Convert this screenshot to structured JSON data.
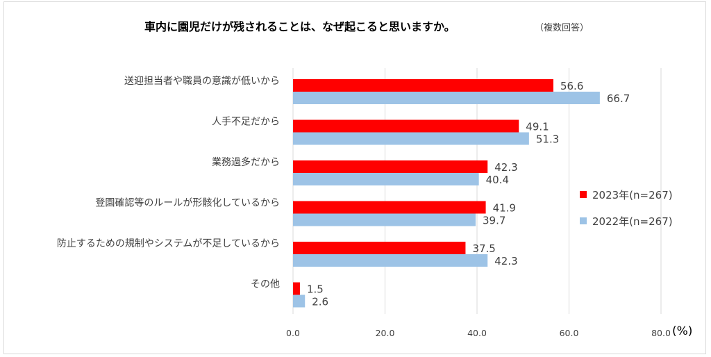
{
  "chart_data": {
    "type": "bar",
    "orientation": "horizontal",
    "title": "車内に園児だけが残されることは、なぜ起こると思いますか。",
    "subtitle": "（複数回答）",
    "categories": [
      "送迎担当者や職員の意識が低いから",
      "人手不足だから",
      "業務過多だから",
      "登園確認等のルールが形骸化しているから",
      "防止するための規制やシステムが不足しているから",
      "その他"
    ],
    "series": [
      {
        "name": "2023年(n=267)",
        "color": "#ff0000",
        "values": [
          56.6,
          49.1,
          42.3,
          41.9,
          37.5,
          1.5
        ]
      },
      {
        "name": "2022年(n=267)",
        "color": "#9dc3e6",
        "values": [
          66.7,
          51.3,
          40.4,
          39.7,
          42.3,
          2.6
        ]
      }
    ],
    "xlim": [
      0,
      80
    ],
    "ticks": [
      "0.0",
      "20.0",
      "40.0",
      "60.0",
      "80.0"
    ],
    "tick_values": [
      0,
      20,
      40,
      60,
      80
    ],
    "unit": "(%)",
    "grid": true,
    "legend_position": "right"
  }
}
